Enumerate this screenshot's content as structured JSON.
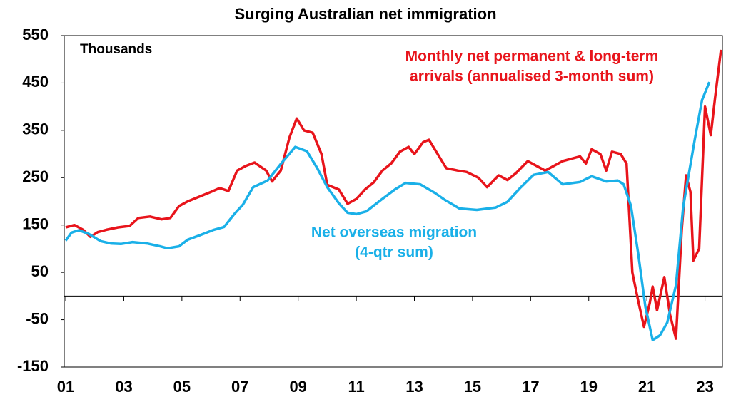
{
  "chart_data": {
    "type": "line",
    "title": "Surging Australian net immigration",
    "y_label": "Thousands",
    "xlim": [
      0.95,
      23.6
    ],
    "ylim": [
      -150,
      550
    ],
    "yticks": [
      550,
      450,
      350,
      250,
      150,
      50,
      -50,
      -150
    ],
    "xticks": [
      {
        "value": 1,
        "label": "01"
      },
      {
        "value": 3,
        "label": "03"
      },
      {
        "value": 5,
        "label": "05"
      },
      {
        "value": 7,
        "label": "07"
      },
      {
        "value": 9,
        "label": "09"
      },
      {
        "value": 11,
        "label": "11"
      },
      {
        "value": 13,
        "label": "13"
      },
      {
        "value": 15,
        "label": "15"
      },
      {
        "value": 17,
        "label": "17"
      },
      {
        "value": 19,
        "label": "19"
      },
      {
        "value": 21,
        "label": "21"
      },
      {
        "value": 23,
        "label": "23"
      }
    ],
    "series": [
      {
        "name": "Monthly net permanent & long-term arrivals (annualised 3-month sum)",
        "label": [
          "Monthly net permanent & long-term",
          "arrivals (annualised 3-month sum)"
        ],
        "color": "#e8141b",
        "x": [
          1.0,
          1.3,
          1.6,
          1.85,
          2.1,
          2.4,
          2.8,
          3.2,
          3.5,
          3.9,
          4.3,
          4.6,
          4.9,
          5.2,
          5.6,
          6.0,
          6.3,
          6.6,
          6.9,
          7.2,
          7.5,
          7.9,
          8.1,
          8.4,
          8.7,
          8.95,
          9.2,
          9.5,
          9.8,
          10.0,
          10.4,
          10.7,
          11.0,
          11.3,
          11.6,
          11.9,
          12.2,
          12.5,
          12.8,
          13.0,
          13.3,
          13.5,
          13.8,
          14.1,
          14.5,
          14.8,
          15.2,
          15.5,
          15.9,
          16.2,
          16.5,
          16.9,
          17.2,
          17.5,
          17.8,
          18.1,
          18.4,
          18.7,
          18.9,
          19.1,
          19.4,
          19.6,
          19.8,
          20.1,
          20.3,
          20.5,
          20.7,
          20.9,
          21.1,
          21.2,
          21.35,
          21.6,
          21.8,
          22.0,
          22.2,
          22.35,
          22.5,
          22.6,
          22.8,
          23.0,
          23.2,
          23.35,
          23.55
        ],
        "values": [
          145,
          150,
          140,
          125,
          135,
          140,
          145,
          148,
          165,
          168,
          162,
          165,
          190,
          200,
          210,
          220,
          228,
          222,
          265,
          275,
          282,
          265,
          242,
          265,
          335,
          375,
          350,
          345,
          300,
          235,
          225,
          195,
          205,
          225,
          240,
          265,
          280,
          305,
          315,
          300,
          325,
          330,
          300,
          270,
          265,
          262,
          250,
          230,
          255,
          245,
          260,
          285,
          275,
          265,
          275,
          285,
          290,
          295,
          280,
          310,
          300,
          265,
          305,
          300,
          280,
          50,
          -10,
          -65,
          -15,
          20,
          -30,
          40,
          -40,
          -90,
          140,
          255,
          220,
          75,
          100,
          400,
          340,
          420,
          520
        ]
      },
      {
        "name": "Net overseas migration (4-qtr sum)",
        "label": [
          "Net overseas migration",
          "(4-qtr sum)"
        ],
        "color": "#1ab0e8",
        "x": [
          1.0,
          1.2,
          1.45,
          1.8,
          2.2,
          2.55,
          2.9,
          3.3,
          3.8,
          4.25,
          4.5,
          4.9,
          5.2,
          5.6,
          6.1,
          6.45,
          6.8,
          7.1,
          7.45,
          7.95,
          8.4,
          8.9,
          9.3,
          9.65,
          10.0,
          10.4,
          10.7,
          11.0,
          11.35,
          11.85,
          12.35,
          12.7,
          13.2,
          13.7,
          14.05,
          14.55,
          15.15,
          15.8,
          16.2,
          16.65,
          17.1,
          17.6,
          18.1,
          18.7,
          19.1,
          19.6,
          20.0,
          20.2,
          20.45,
          20.7,
          20.95,
          21.2,
          21.45,
          21.7,
          22.0,
          22.25,
          22.65,
          22.9,
          23.15
        ],
        "values": [
          117,
          134,
          139,
          131,
          116,
          111,
          110,
          114,
          111,
          105,
          101,
          105,
          119,
          128,
          140,
          146,
          173,
          193,
          230,
          244,
          279,
          315,
          306,
          271,
          230,
          196,
          176,
          173,
          179,
          203,
          226,
          239,
          236,
          218,
          203,
          185,
          182,
          187,
          199,
          229,
          256,
          262,
          236,
          241,
          253,
          242,
          244,
          236,
          191,
          90,
          -23,
          -93,
          -83,
          -56,
          23,
          188,
          331,
          414,
          452
        ]
      }
    ]
  }
}
